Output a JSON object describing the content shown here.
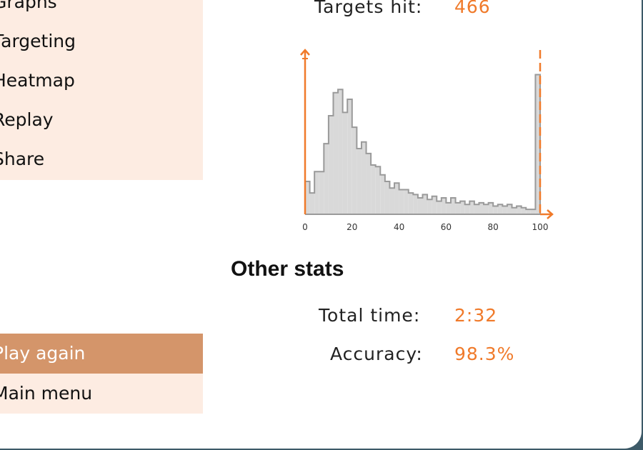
{
  "menu": {
    "items": [
      {
        "label": "Graphs"
      },
      {
        "label": "Targeting"
      },
      {
        "label": "Heatmap"
      },
      {
        "label": "Replay"
      },
      {
        "label": "Share"
      }
    ],
    "play_again": "Play again",
    "main_menu": "Main menu"
  },
  "targets": {
    "label": "Targets hit:",
    "value": "466"
  },
  "other_stats": {
    "title": "Other stats",
    "total_time_label": "Total time:",
    "total_time_value": "2:32",
    "accuracy_label": "Accuracy:",
    "accuracy_value": "98.3%"
  },
  "colors": {
    "accent": "#f07a2a",
    "menu_bg": "#fdece2",
    "button_active": "#d4956a",
    "hist_fill": "#d9d9d9",
    "hist_stroke": "#9a9a9a",
    "frame": "#3d5a68"
  },
  "chart_data": {
    "type": "bar",
    "subtype": "histogram",
    "xlim": [
      0,
      100
    ],
    "tick_labels": [
      "0",
      "20",
      "40",
      "60",
      "80",
      "100"
    ],
    "bin_width": 2,
    "values": [
      20,
      13,
      26,
      26,
      43,
      60,
      74,
      76,
      62,
      70,
      53,
      40,
      44,
      37,
      30,
      29,
      24,
      20,
      16,
      19,
      15,
      15,
      13,
      12,
      10,
      12,
      9,
      11,
      8,
      10,
      7,
      10,
      7,
      8,
      6,
      8,
      6,
      7,
      6,
      7,
      5,
      6,
      5,
      6,
      4,
      5,
      4,
      3,
      3,
      85
    ],
    "ymax": 100,
    "markers": [
      {
        "x": 0,
        "style": "solid",
        "direction": "up"
      },
      {
        "x": 100,
        "style": "dashed",
        "direction": "right"
      }
    ],
    "grid": false
  }
}
